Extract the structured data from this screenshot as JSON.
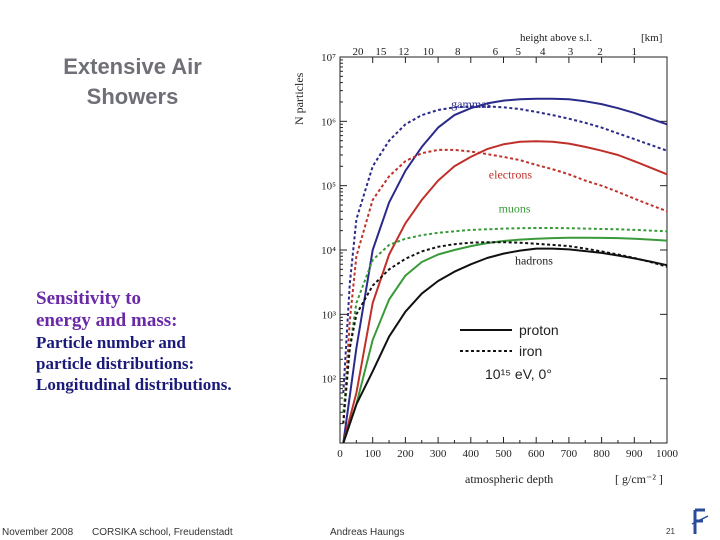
{
  "slide": {
    "title_line1": "Extensive Air",
    "title_line2": "Showers",
    "sens_line1": "Sensitivity to",
    "sens_line2": "energy and mass:",
    "sens_line3": "Particle number and",
    "sens_line4": "particle distributions:",
    "sens_line5": "Longitudinal distributions.",
    "footer_date": "November 2008",
    "footer_event": "CORSIKA school, Freudenstadt",
    "footer_author": "Andreas Haungs",
    "page_number": "21"
  },
  "chart_data": {
    "type": "line",
    "xlabel": "atmospheric depth",
    "xunit": "[ g/cm⁻² ]",
    "ylabel": "N particles",
    "toplabel": "height above s.l.",
    "topunit": "[km]",
    "xlim": [
      0,
      1000
    ],
    "ylim": [
      10,
      10000000
    ],
    "yscale": "log",
    "xticks": [
      0,
      100,
      200,
      300,
      400,
      500,
      600,
      700,
      800,
      900,
      1000
    ],
    "yticks": [
      {
        "value": 100,
        "label": "10²"
      },
      {
        "value": 1000,
        "label": "10³"
      },
      {
        "value": 10000,
        "label": "10⁴"
      },
      {
        "value": 100000,
        "label": "10⁵"
      },
      {
        "value": 1000000,
        "label": "10⁶"
      },
      {
        "value": 10000000,
        "label": "10⁷"
      }
    ],
    "top_ticks": [
      {
        "label": "20",
        "depth": 55
      },
      {
        "label": "15",
        "depth": 125
      },
      {
        "label": "12",
        "depth": 195
      },
      {
        "label": "10",
        "depth": 270
      },
      {
        "label": "8",
        "depth": 360
      },
      {
        "label": "6",
        "depth": 475
      },
      {
        "label": "5",
        "depth": 545
      },
      {
        "label": "4",
        "depth": 620
      },
      {
        "label": "3",
        "depth": 705
      },
      {
        "label": "2",
        "depth": 795
      },
      {
        "label": "1",
        "depth": 900
      }
    ],
    "curve_labels": [
      {
        "text": "gammas",
        "x": 340,
        "y": 1600000,
        "color": "#2a2a8a"
      },
      {
        "text": "electrons",
        "x": 455,
        "y": 130000,
        "color": "#c0302a"
      },
      {
        "text": "muons",
        "x": 485,
        "y": 38000,
        "color": "#3a9a3a"
      },
      {
        "text": "hadrons",
        "x": 535,
        "y": 6000,
        "color": "#222222"
      }
    ],
    "legend": {
      "proton": "proton",
      "iron": "iron",
      "energy": "10¹⁵ eV, 0°"
    },
    "series": [
      {
        "name": "gammas",
        "particle": "gammas",
        "primary": "proton",
        "color": "#2a2a8a",
        "dash": false,
        "x": [
          10,
          50,
          100,
          150,
          200,
          250,
          300,
          350,
          400,
          450,
          500,
          550,
          600,
          650,
          700,
          750,
          800,
          850,
          900,
          950,
          1000
        ],
        "y": [
          10,
          300,
          10000,
          55000,
          170000,
          400000,
          800000,
          1250000,
          1600000,
          1900000,
          2100000,
          2200000,
          2250000,
          2250000,
          2200000,
          2050000,
          1850000,
          1600000,
          1350000,
          1100000,
          900000
        ]
      },
      {
        "name": "gammas",
        "particle": "gammas",
        "primary": "iron",
        "color": "#2a2a8a",
        "dash": true,
        "x": [
          10,
          30,
          50,
          100,
          150,
          200,
          250,
          300,
          350,
          400,
          450,
          500,
          550,
          600,
          650,
          700,
          750,
          800,
          850,
          900,
          950,
          1000
        ],
        "y": [
          60,
          3000,
          30000,
          200000,
          500000,
          900000,
          1250000,
          1500000,
          1650000,
          1700000,
          1700000,
          1650000,
          1550000,
          1400000,
          1250000,
          1100000,
          950000,
          800000,
          650000,
          530000,
          430000,
          350000
        ]
      },
      {
        "name": "electrons",
        "particle": "electrons",
        "primary": "proton",
        "color": "#c0302a",
        "dash": false,
        "x": [
          10,
          50,
          100,
          150,
          200,
          250,
          300,
          350,
          400,
          450,
          500,
          550,
          600,
          650,
          700,
          750,
          800,
          850,
          900,
          950,
          1000
        ],
        "y": [
          10,
          60,
          1500,
          8500,
          26000,
          60000,
          120000,
          200000,
          280000,
          370000,
          440000,
          480000,
          490000,
          480000,
          450000,
          400000,
          350000,
          300000,
          240000,
          190000,
          150000
        ]
      },
      {
        "name": "electrons",
        "particle": "electrons",
        "primary": "iron",
        "color": "#c0302a",
        "dash": true,
        "x": [
          10,
          30,
          50,
          100,
          150,
          200,
          250,
          300,
          350,
          400,
          450,
          500,
          550,
          600,
          650,
          700,
          750,
          800,
          850,
          900,
          950,
          1000
        ],
        "y": [
          20,
          800,
          8000,
          60000,
          140000,
          240000,
          320000,
          360000,
          360000,
          340000,
          310000,
          280000,
          250000,
          210000,
          180000,
          150000,
          120000,
          100000,
          80000,
          63000,
          50000,
          40000
        ]
      },
      {
        "name": "muons",
        "particle": "muons",
        "primary": "proton",
        "color": "#3a9a3a",
        "dash": false,
        "x": [
          10,
          50,
          100,
          150,
          200,
          250,
          300,
          350,
          400,
          450,
          500,
          550,
          600,
          650,
          700,
          750,
          800,
          850,
          900,
          950,
          1000
        ],
        "y": [
          10,
          40,
          400,
          1700,
          4000,
          6500,
          8500,
          10000,
          11500,
          12800,
          13800,
          14500,
          15000,
          15300,
          15500,
          15500,
          15400,
          15300,
          15000,
          14500,
          14000
        ]
      },
      {
        "name": "muons",
        "particle": "muons",
        "primary": "iron",
        "color": "#3a9a3a",
        "dash": true,
        "x": [
          10,
          30,
          50,
          100,
          150,
          200,
          250,
          300,
          350,
          400,
          450,
          500,
          550,
          600,
          650,
          700,
          750,
          800,
          850,
          900,
          950,
          1000
        ],
        "y": [
          30,
          300,
          1500,
          7000,
          12000,
          15000,
          17000,
          18500,
          19500,
          20500,
          21000,
          21500,
          21800,
          22000,
          22000,
          21800,
          21500,
          21200,
          21000,
          20500,
          20000,
          19500
        ]
      },
      {
        "name": "hadrons",
        "particle": "hadrons",
        "primary": "proton",
        "color": "#111111",
        "dash": false,
        "x": [
          10,
          50,
          100,
          150,
          200,
          250,
          300,
          350,
          400,
          450,
          500,
          550,
          600,
          650,
          700,
          750,
          800,
          850,
          900,
          950,
          1000
        ],
        "y": [
          10,
          40,
          130,
          450,
          1100,
          2100,
          3300,
          4600,
          6000,
          7500,
          8800,
          9800,
          10500,
          10500,
          10200,
          9600,
          9000,
          8200,
          7400,
          6600,
          5800
        ]
      },
      {
        "name": "hadrons",
        "particle": "hadrons",
        "primary": "iron",
        "color": "#111111",
        "dash": true,
        "x": [
          10,
          30,
          50,
          100,
          150,
          200,
          250,
          300,
          350,
          400,
          450,
          500,
          550,
          600,
          650,
          700,
          750,
          800,
          850,
          900,
          950,
          1000
        ],
        "y": [
          20,
          300,
          1000,
          2800,
          5000,
          7300,
          9500,
          11200,
          12300,
          13000,
          13200,
          13200,
          13000,
          12500,
          12000,
          11500,
          10500,
          9500,
          8500,
          7500,
          6500,
          5500
        ]
      }
    ]
  }
}
